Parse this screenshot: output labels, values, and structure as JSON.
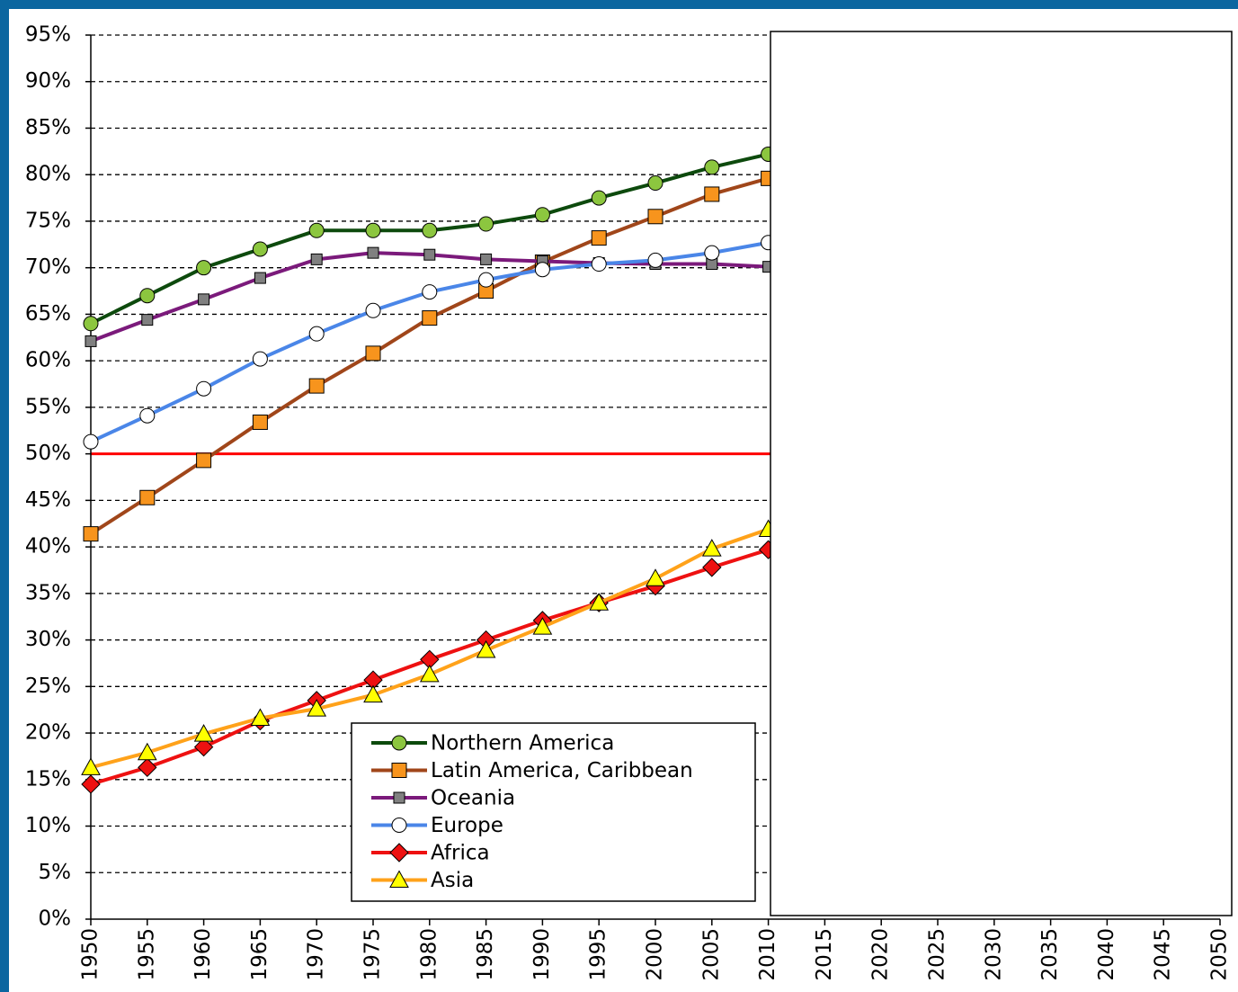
{
  "chart_data": {
    "type": "line",
    "x": [
      1950,
      1955,
      1960,
      1965,
      1970,
      1975,
      1980,
      1985,
      1990,
      1995,
      2000,
      2005,
      2010
    ],
    "xlim": [
      1950,
      2050
    ],
    "xticks": [
      1950,
      1955,
      1960,
      1965,
      1970,
      1975,
      1980,
      1985,
      1990,
      1995,
      2000,
      2005,
      2010,
      2015,
      2020,
      2025,
      2030,
      2035,
      2040,
      2045,
      2050
    ],
    "ylim": [
      0,
      95
    ],
    "yticks": [
      {
        "value": 0,
        "label": "0%"
      },
      {
        "value": 5,
        "label": "5%"
      },
      {
        "value": 10,
        "label": "10%"
      },
      {
        "value": 15,
        "label": "15%"
      },
      {
        "value": 20,
        "label": "20%"
      },
      {
        "value": 25,
        "label": "25%"
      },
      {
        "value": 30,
        "label": "30%"
      },
      {
        "value": 35,
        "label": "35%"
      },
      {
        "value": 40,
        "label": "40%"
      },
      {
        "value": 45,
        "label": "45%"
      },
      {
        "value": 50,
        "label": "50%"
      },
      {
        "value": 55,
        "label": "55%"
      },
      {
        "value": 60,
        "label": "60%"
      },
      {
        "value": 65,
        "label": "65%"
      },
      {
        "value": 70,
        "label": "70%"
      },
      {
        "value": 75,
        "label": "75%"
      },
      {
        "value": 80,
        "label": "80%"
      },
      {
        "value": 85,
        "label": "85%"
      },
      {
        "value": 90,
        "label": "90%"
      },
      {
        "value": 95,
        "label": "95%"
      }
    ],
    "grid": true,
    "reference_line": {
      "value": 50,
      "color": "#ff0000"
    },
    "series": [
      {
        "name": "Northern America",
        "color": "#0d4a0d",
        "marker": "circle",
        "marker_color": "#8cc63f",
        "values": [
          64,
          67,
          70,
          72,
          74,
          74,
          74,
          74.7,
          75.7,
          77.5,
          79.1,
          80.8,
          82.2
        ]
      },
      {
        "name": "Latin America, Caribbean",
        "color": "#a0461a",
        "marker": "square",
        "marker_color": "#f7941d",
        "values": [
          41.4,
          45.3,
          49.3,
          53.4,
          57.3,
          60.8,
          64.6,
          67.5,
          70.6,
          73.2,
          75.5,
          77.9,
          79.6
        ]
      },
      {
        "name": "Oceania",
        "color": "#7b1a7b",
        "marker": "small-square",
        "marker_color": "#808080",
        "values": [
          62.1,
          64.4,
          66.6,
          68.9,
          70.9,
          71.6,
          71.4,
          70.9,
          70.7,
          70.5,
          70.4,
          70.4,
          70.1
        ]
      },
      {
        "name": "Europe",
        "color": "#4a86e8",
        "marker": "circle",
        "marker_color": "#ffffff",
        "values": [
          51.3,
          54.1,
          57.0,
          60.2,
          62.9,
          65.4,
          67.4,
          68.7,
          69.8,
          70.4,
          70.8,
          71.6,
          72.7
        ]
      },
      {
        "name": "Africa",
        "color": "#ee1111",
        "marker": "diamond",
        "marker_color": "#ee1111",
        "values": [
          14.5,
          16.3,
          18.5,
          21.3,
          23.5,
          25.7,
          27.9,
          30.0,
          32.1,
          34.0,
          35.8,
          37.8,
          39.7
        ]
      },
      {
        "name": "Asia",
        "color": "#ffa21a",
        "marker": "triangle",
        "marker_color": "#ffff00",
        "values": [
          16.3,
          17.9,
          19.9,
          21.6,
          22.6,
          24.1,
          26.3,
          28.9,
          31.4,
          34.0,
          36.6,
          39.8,
          41.9
        ]
      }
    ]
  }
}
